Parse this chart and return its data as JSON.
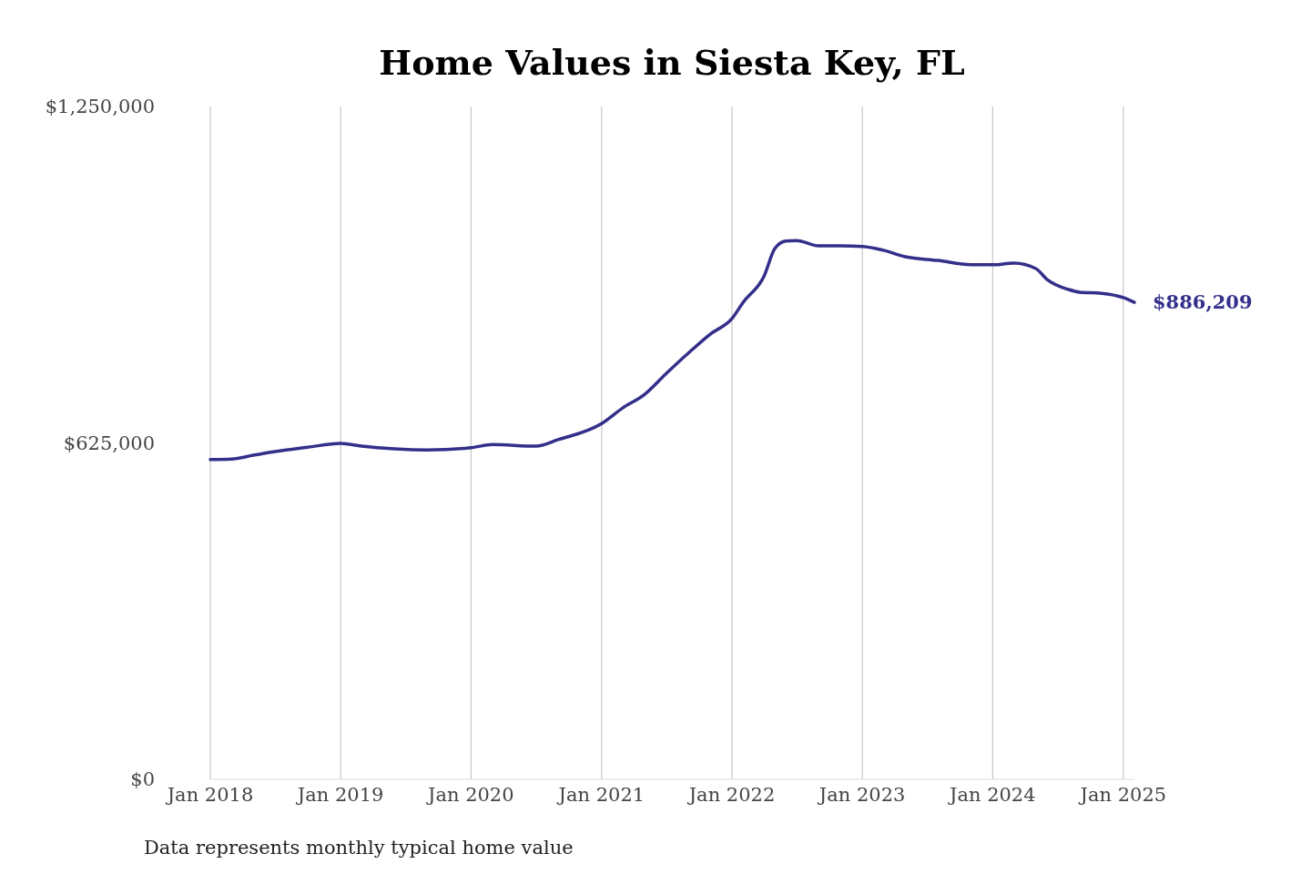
{
  "chart_data": {
    "type": "line",
    "title": "Home Values in Siesta Key, FL",
    "x": [
      "2018-01",
      "2018-03",
      "2018-05",
      "2018-07",
      "2018-10",
      "2019-01",
      "2019-03",
      "2019-06",
      "2019-09",
      "2020-01",
      "2020-03",
      "2020-07",
      "2020-09",
      "2021-01",
      "2021-03",
      "2021-05",
      "2021-07",
      "2021-09",
      "2021-11",
      "2022-01",
      "2022-02",
      "2022-04",
      "2022-05",
      "2022-06",
      "2022-07",
      "2022-09",
      "2022-11",
      "2023-01",
      "2023-03",
      "2023-05",
      "2023-08",
      "2023-11",
      "2024-01",
      "2024-03",
      "2024-05",
      "2024-06",
      "2024-08",
      "2024-09",
      "2024-11",
      "2025-01",
      "2025-02"
    ],
    "series": [
      {
        "color": "#332f8a",
        "values": [
          594000,
          595000,
          602000,
          609000,
          617000,
          624000,
          619000,
          614000,
          612000,
          616000,
          622000,
          619000,
          631000,
          661000,
          690000,
          715000,
          754000,
          792000,
          827000,
          856000,
          886000,
          935000,
          986000,
          1000000,
          1001000,
          991000,
          991000,
          990000,
          983000,
          971000,
          964000,
          956000,
          956000,
          959000,
          949000,
          929000,
          910000,
          905000,
          903000,
          895000,
          886209
        ]
      }
    ],
    "xticks": [
      {
        "value": "2018-01",
        "label": "Jan 2018"
      },
      {
        "value": "2019-01",
        "label": "Jan 2019"
      },
      {
        "value": "2020-01",
        "label": "Jan 2020"
      },
      {
        "value": "2021-01",
        "label": "Jan 2021"
      },
      {
        "value": "2022-01",
        "label": "Jan 2022"
      },
      {
        "value": "2023-01",
        "label": "Jan 2023"
      },
      {
        "value": "2024-01",
        "label": "Jan 2024"
      },
      {
        "value": "2025-01",
        "label": "Jan 2025"
      }
    ],
    "xlim": [
      "2018-01",
      "2025-02"
    ],
    "ylim": [
      0,
      1250000
    ],
    "yticks": [
      {
        "value": 0,
        "label": "$0"
      },
      {
        "value": 625000,
        "label": "$625,000"
      },
      {
        "value": 1250000,
        "label": "$1,250,000"
      }
    ],
    "grid": "x",
    "annotations": [
      {
        "text": "$886,209",
        "x": "2025-02",
        "y": 886209
      },
      "Data represents monthly typical home value"
    ]
  }
}
